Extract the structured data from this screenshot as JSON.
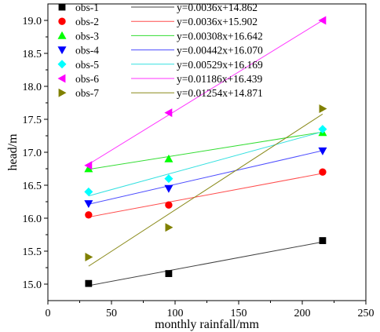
{
  "chart_data": {
    "type": "scatter",
    "xlabel": "monthly rainfall/mm",
    "ylabel": "head/m",
    "xlim": [
      0,
      250
    ],
    "ylim": [
      14.75,
      19.25
    ],
    "xticks": [
      0,
      50,
      100,
      150,
      200,
      250
    ],
    "yticks": [
      15.0,
      15.5,
      16.0,
      16.5,
      17.0,
      17.5,
      18.0,
      18.5,
      19.0
    ],
    "legend_position": "top-left",
    "grid": false,
    "series": [
      {
        "name": "obs-1",
        "marker": "square",
        "color": "#000000",
        "line_color": "#404040",
        "x": [
          32,
          95,
          216
        ],
        "y": [
          15.01,
          15.16,
          15.66
        ],
        "fit_label": "y=0.0036x+14.862",
        "fit_slope": 0.0036,
        "fit_intercept": 14.862
      },
      {
        "name": "obs-2",
        "marker": "circle",
        "color": "#ff0000",
        "line_color": "#ff4d4d",
        "x": [
          32,
          95,
          216
        ],
        "y": [
          16.05,
          16.2,
          16.7
        ],
        "fit_label": "y=0.0036x+15.902",
        "fit_slope": 0.0036,
        "fit_intercept": 15.902
      },
      {
        "name": "obs-3",
        "marker": "triangle-up",
        "color": "#00ff00",
        "line_color": "#33dd33",
        "x": [
          32,
          95,
          216
        ],
        "y": [
          16.75,
          16.9,
          17.3
        ],
        "fit_label": "y=0.00308x+16.642",
        "fit_slope": 0.00308,
        "fit_intercept": 16.642
      },
      {
        "name": "obs-4",
        "marker": "triangle-down",
        "color": "#0000ff",
        "line_color": "#4d4dff",
        "x": [
          32,
          95,
          216
        ],
        "y": [
          16.22,
          16.45,
          17.02
        ],
        "fit_label": "y=0.00442x+16.070",
        "fit_slope": 0.00442,
        "fit_intercept": 16.07
      },
      {
        "name": "obs-5",
        "marker": "diamond",
        "color": "#00ffff",
        "line_color": "#33e0e0",
        "x": [
          32,
          95,
          216
        ],
        "y": [
          16.4,
          16.6,
          17.35
        ],
        "fit_label": "y=0.00529x+16.169",
        "fit_slope": 0.00529,
        "fit_intercept": 16.169
      },
      {
        "name": "obs-6",
        "marker": "triangle-left",
        "color": "#ff00ff",
        "line_color": "#ff33ff",
        "x": [
          32,
          95,
          216
        ],
        "y": [
          16.8,
          17.6,
          19.0
        ],
        "fit_label": "y=0.01186x+16.439",
        "fit_slope": 0.01186,
        "fit_intercept": 16.439
      },
      {
        "name": "obs-7",
        "marker": "triangle-right",
        "color": "#808000",
        "line_color": "#8a8a1a",
        "x": [
          32,
          95,
          216
        ],
        "y": [
          15.41,
          15.86,
          17.66
        ],
        "fit_label": "y=0.01254x+14.871",
        "fit_slope": 0.01254,
        "fit_intercept": 14.871
      }
    ]
  }
}
